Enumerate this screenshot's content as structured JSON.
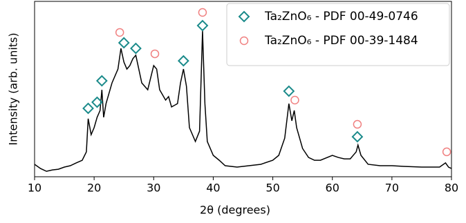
{
  "chart_data": {
    "type": "line",
    "xlabel": "2θ (degrees)",
    "ylabel": "Intensity (arb. units)",
    "xlim": [
      10,
      80
    ],
    "xticks": [
      10,
      20,
      30,
      40,
      50,
      60,
      70,
      80
    ],
    "ylim": [
      0,
      100
    ],
    "legend": "upper right",
    "series": [
      {
        "name": null,
        "color": "#000000",
        "marker": "none",
        "x": [
          10,
          11,
          12,
          13,
          14,
          15,
          16,
          17,
          18,
          18.7,
          19,
          19.5,
          20,
          20.5,
          21,
          21.3,
          21.6,
          22,
          23,
          24,
          24.5,
          25,
          25.5,
          26,
          26.5,
          27,
          27.5,
          28,
          29,
          30,
          30.5,
          31,
          32,
          32.5,
          33,
          34,
          34.5,
          35,
          35.5,
          36,
          37,
          37.7,
          38.2,
          38.6,
          39,
          40,
          41,
          42,
          44,
          46,
          48,
          50,
          51,
          52,
          52.7,
          53.2,
          53.6,
          54,
          55,
          56,
          57,
          58,
          60,
          61,
          62,
          63,
          64,
          64.3,
          64.8,
          66,
          68,
          70,
          72,
          75,
          78,
          79,
          79.5,
          80
        ],
        "values": [
          7.1,
          4.7,
          3.1,
          3.9,
          4.3,
          5.5,
          6.3,
          7.9,
          9.4,
          14.2,
          33.1,
          24.0,
          28.0,
          33.9,
          37.8,
          49.6,
          33.9,
          41.7,
          53.5,
          61.4,
          73.2,
          65.4,
          61.4,
          63.4,
          67.3,
          69.3,
          61.4,
          53.5,
          49.6,
          63.4,
          61.4,
          49.6,
          43.7,
          45.7,
          39.8,
          41.7,
          53.5,
          61.4,
          51.6,
          28.0,
          20.1,
          26.0,
          83.1,
          41.7,
          20.1,
          12.2,
          9.4,
          6.3,
          5.5,
          6.3,
          7.1,
          9.4,
          12.2,
          22.0,
          41.7,
          31.9,
          37.8,
          28.0,
          16.1,
          11.0,
          9.4,
          9.4,
          12.2,
          11.0,
          10.2,
          10.2,
          14.2,
          18.1,
          12.2,
          7.1,
          6.3,
          6.3,
          5.9,
          5.5,
          5.5,
          7.9,
          5.5,
          4.7
        ]
      },
      {
        "name": "Ta₂ZnO₆ - PDF 00-49-0746",
        "color": "#1a8a8a",
        "marker": "diamond",
        "x": [
          19,
          20.5,
          21.3,
          25,
          27,
          35,
          38.2,
          52.7,
          64.2
        ],
        "values": [
          39.0,
          42.5,
          54.7,
          76.4,
          73.2,
          66.1,
          86.2,
          48.8,
          22.8
        ]
      },
      {
        "name": "Ta₂ZnO₆ - PDF 00-39-1484",
        "color": "#f08080",
        "marker": "circle",
        "x": [
          24.3,
          30.2,
          38.2,
          53.7,
          64.2,
          79.2
        ],
        "values": [
          82.3,
          70.1,
          93.7,
          43.7,
          29.9,
          14.2
        ]
      }
    ]
  }
}
